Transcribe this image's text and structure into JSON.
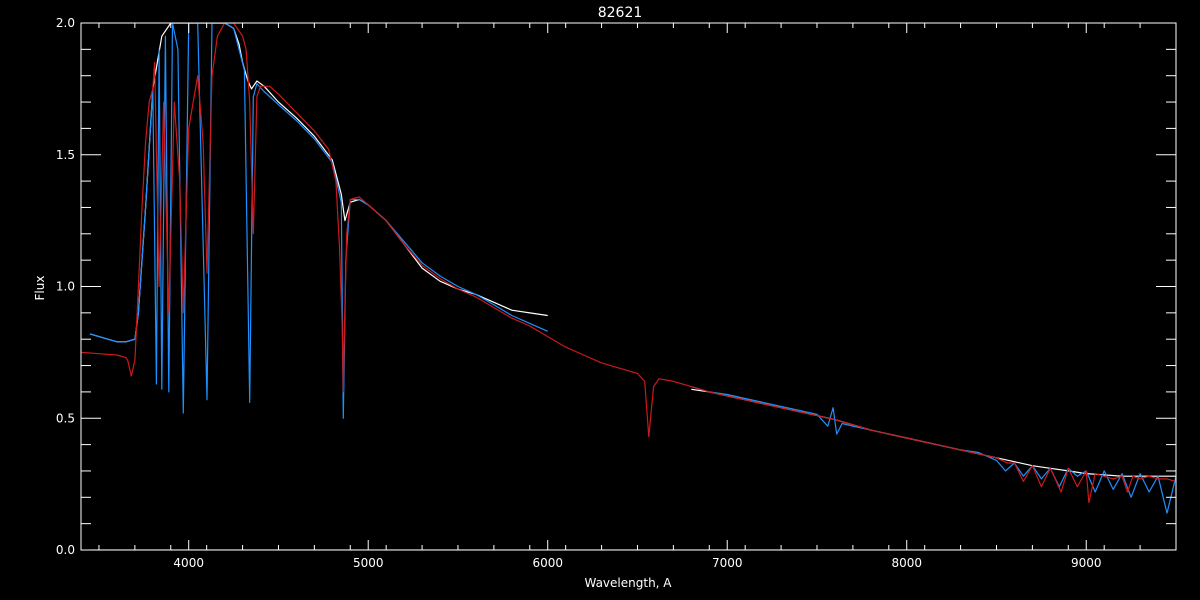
{
  "chart_data": {
    "type": "line",
    "title": "82621",
    "xlabel": "Wavelength, A",
    "ylabel": "Flux",
    "xlim": [
      3400,
      9500
    ],
    "ylim": [
      0.0,
      2.0
    ],
    "xticks": [
      4000,
      5000,
      6000,
      7000,
      8000,
      9000
    ],
    "xtick_labels": [
      "4000",
      "5000",
      "6000",
      "7000",
      "8000",
      "9000"
    ],
    "yticks": [
      0.0,
      0.5,
      1.0,
      1.5,
      2.0
    ],
    "ytick_labels": [
      "0.0",
      "0.5",
      "1.0",
      "1.5",
      "2.0"
    ],
    "grid": false,
    "background": "#000000",
    "series": [
      {
        "color": "#ffffff",
        "segments": [
          {
            "x": [
              3450,
              3500,
              3550,
              3600,
              3650,
              3700,
              3720,
              3760,
              3800,
              3850,
              3900,
              3950,
              4000,
              4050,
              4100,
              4150,
              4200,
              4250,
              4280,
              4300,
              4330,
              4350,
              4380,
              4420,
              4500,
              4600,
              4700,
              4800,
              4850,
              4870,
              4900,
              4950,
              5000,
              5100,
              5200,
              5300,
              5400,
              5500,
              5600,
              5700,
              5800,
              5900,
              6000
            ],
            "y": [
              0.82,
              0.81,
              0.8,
              0.79,
              0.79,
              0.8,
              0.9,
              1.3,
              1.75,
              1.95,
              2.0,
              2.0,
              2.0,
              2.0,
              2.0,
              2.0,
              2.0,
              1.98,
              1.92,
              1.85,
              1.78,
              1.75,
              1.78,
              1.76,
              1.7,
              1.64,
              1.57,
              1.48,
              1.35,
              1.25,
              1.32,
              1.33,
              1.31,
              1.25,
              1.16,
              1.07,
              1.02,
              0.99,
              0.97,
              0.94,
              0.91,
              0.9,
              0.89
            ]
          },
          {
            "x": [
              6800,
              6900,
              7000,
              7100,
              7200,
              7300,
              7400,
              7500,
              7600,
              7700,
              7800,
              7900,
              8000,
              8100,
              8200,
              8300,
              8400,
              8500,
              8600,
              8700,
              8800,
              8900,
              9000,
              9100,
              9200,
              9300,
              9400,
              9500
            ],
            "y": [
              0.61,
              0.6,
              0.585,
              0.57,
              0.555,
              0.54,
              0.525,
              0.51,
              0.495,
              0.475,
              0.455,
              0.44,
              0.425,
              0.41,
              0.395,
              0.38,
              0.365,
              0.35,
              0.335,
              0.32,
              0.31,
              0.3,
              0.29,
              0.285,
              0.28,
              0.28,
              0.28,
              0.28
            ]
          }
        ]
      },
      {
        "color": "#1e90ff",
        "segments": [
          {
            "x": [
              3450,
              3500,
              3550,
              3600,
              3650,
              3700,
              3720,
              3760,
              3800,
              3820,
              3835,
              3850,
              3870,
              3889,
              3910,
              3940,
              3970,
              4000,
              4050,
              4102,
              4130,
              4200,
              4250,
              4280,
              4310,
              4340,
              4360,
              4380,
              4420,
              4500,
              4600,
              4700,
              4800,
              4850,
              4861,
              4875,
              4900,
              4950,
              5000,
              5100,
              5200,
              5300,
              5400,
              5500,
              5600,
              5700,
              5800,
              5900,
              6000
            ],
            "y": [
              0.82,
              0.81,
              0.8,
              0.79,
              0.79,
              0.8,
              0.9,
              1.3,
              1.75,
              0.63,
              1.9,
              0.61,
              1.95,
              0.6,
              2.0,
              1.9,
              0.52,
              2.0,
              2.0,
              0.57,
              2.0,
              2.0,
              1.98,
              1.9,
              1.82,
              0.56,
              1.72,
              1.77,
              1.74,
              1.69,
              1.63,
              1.56,
              1.47,
              1.32,
              0.5,
              1.1,
              1.33,
              1.33,
              1.31,
              1.25,
              1.17,
              1.09,
              1.04,
              1.0,
              0.97,
              0.93,
              0.89,
              0.86,
              0.83
            ]
          },
          {
            "x": [
              6800,
              6900,
              7000,
              7100,
              7200,
              7300,
              7400,
              7500,
              7560,
              7590,
              7610,
              7640,
              7700,
              7800,
              7900,
              8000,
              8100,
              8200,
              8300,
              8400,
              8500,
              8550,
              8600,
              8650,
              8700,
              8750,
              8800,
              8850,
              8900,
              8950,
              9000,
              9050,
              9100,
              9150,
              9200,
              9250,
              9300,
              9350,
              9400,
              9450,
              9500
            ],
            "y": [
              0.62,
              0.6,
              0.59,
              0.575,
              0.56,
              0.545,
              0.53,
              0.515,
              0.47,
              0.54,
              0.44,
              0.48,
              0.47,
              0.455,
              0.44,
              0.425,
              0.41,
              0.395,
              0.38,
              0.37,
              0.34,
              0.3,
              0.33,
              0.28,
              0.32,
              0.27,
              0.31,
              0.24,
              0.31,
              0.28,
              0.3,
              0.22,
              0.3,
              0.23,
              0.29,
              0.2,
              0.29,
              0.22,
              0.28,
              0.14,
              0.28
            ]
          },
          {
            "x": [
              3450,
              9500
            ],
            "y": [
              0.0,
              0.0
            ]
          }
        ]
      },
      {
        "color": "#cc1a1a",
        "segments": [
          {
            "x": [
              3400,
              3500,
              3600,
              3650,
              3660,
              3680,
              3700,
              3720,
              3740,
              3760,
              3780,
              3800,
              3810,
              3835,
              3860,
              3889,
              3920,
              3950,
              3970,
              4000,
              4050,
              4080,
              4102,
              4130,
              4160,
              4200,
              4250,
              4300,
              4320,
              4340,
              4360,
              4380,
              4400,
              4450,
              4500,
              4600,
              4700,
              4780,
              4820,
              4840,
              4855,
              4861,
              4868,
              4880,
              4900,
              4950,
              5000,
              5100,
              5200,
              5300,
              5400,
              5500,
              5600,
              5700,
              5800,
              5900,
              6000,
              6100,
              6200,
              6300,
              6400,
              6500,
              6540,
              6563,
              6590,
              6620,
              6700,
              6800,
              6900,
              7000,
              7100,
              7200,
              7300,
              7400,
              7500,
              7600,
              7700,
              7800,
              7900,
              8000,
              8100,
              8200,
              8300,
              8400,
              8500,
              8560,
              8600,
              8650,
              8700,
              8750,
              8800,
              8860,
              8900,
              8950,
              9000,
              9015,
              9050,
              9100,
              9150,
              9200,
              9229,
              9260,
              9300,
              9350,
              9400,
              9450,
              9500
            ],
            "y": [
              0.75,
              0.745,
              0.74,
              0.73,
              0.72,
              0.66,
              0.72,
              1.0,
              1.3,
              1.55,
              1.7,
              1.75,
              1.85,
              1.0,
              1.7,
              0.9,
              1.7,
              1.4,
              0.9,
              1.6,
              1.8,
              1.55,
              1.05,
              1.8,
              1.95,
              2.0,
              2.0,
              1.95,
              1.9,
              1.7,
              1.2,
              1.72,
              1.76,
              1.76,
              1.73,
              1.66,
              1.59,
              1.52,
              1.4,
              1.15,
              0.85,
              0.6,
              0.85,
              1.2,
              1.33,
              1.34,
              1.31,
              1.25,
              1.16,
              1.08,
              1.03,
              0.99,
              0.96,
              0.92,
              0.88,
              0.85,
              0.81,
              0.77,
              0.74,
              0.71,
              0.69,
              0.67,
              0.64,
              0.43,
              0.62,
              0.65,
              0.64,
              0.62,
              0.6,
              0.585,
              0.57,
              0.555,
              0.54,
              0.525,
              0.51,
              0.495,
              0.475,
              0.455,
              0.44,
              0.425,
              0.41,
              0.395,
              0.38,
              0.365,
              0.35,
              0.33,
              0.33,
              0.26,
              0.32,
              0.24,
              0.31,
              0.22,
              0.31,
              0.24,
              0.3,
              0.18,
              0.29,
              0.28,
              0.27,
              0.28,
              0.22,
              0.28,
              0.27,
              0.28,
              0.27,
              0.27,
              0.26
            ]
          }
        ]
      }
    ]
  }
}
